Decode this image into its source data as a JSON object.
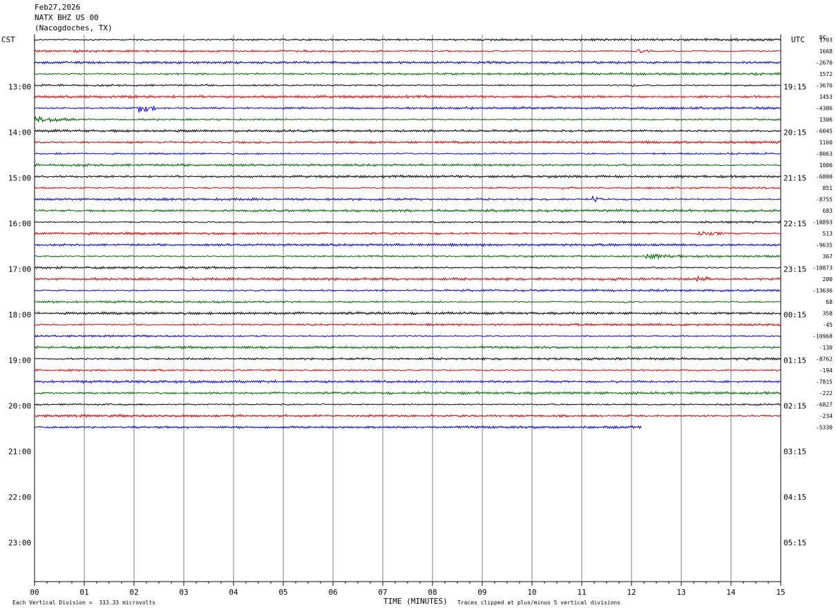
{
  "header": {
    "date": "Feb27,2026",
    "station": "NATX BHZ US 00",
    "location": "(Nacogdoches, TX)"
  },
  "left_tz": "CST",
  "right_tz": "UTC",
  "dc_label": "DC",
  "footer": {
    "scale": "Each Vertical Division =  333.33 microvolts",
    "xlabel": "TIME (MINUTES)",
    "clip": "Traces clipped at plus/minus 5 vertical divisions"
  },
  "colors": {
    "black": "#000000",
    "red": "#e00000",
    "blue": "#0000e0",
    "green": "#006400",
    "grid": "#7f7f7f"
  },
  "chart_data": {
    "type": "line",
    "title": "NATX BHZ US 00",
    "xlabel": "TIME (MINUTES)",
    "x_ticks": [
      "00",
      "01",
      "02",
      "03",
      "04",
      "05",
      "06",
      "07",
      "08",
      "09",
      "10",
      "11",
      "12",
      "13",
      "14",
      "15"
    ],
    "xlim": [
      0,
      15
    ],
    "left_hour_labels": [
      "13:00",
      "14:00",
      "15:00",
      "16:00",
      "17:00",
      "18:00",
      "19:00",
      "20:00",
      "21:00",
      "22:00",
      "23:00"
    ],
    "right_hour_labels": [
      "19:15",
      "20:15",
      "21:15",
      "22:15",
      "23:15",
      "00:15",
      "01:15",
      "02:15",
      "03:15",
      "04:15",
      "05:15"
    ],
    "rows_per_hour": 4,
    "row_colors": [
      "black",
      "red",
      "blue",
      "green"
    ],
    "trace_count": 35,
    "last_trace_minutes": 12.2,
    "dc_values": [
      "1703",
      "1668",
      "-2670",
      "1572",
      "-3676",
      "1453",
      "-4386",
      "1306",
      "-6045",
      "1160",
      "-8063",
      "1006",
      "-6800",
      "851",
      "-8755",
      "683",
      "-10893",
      "513",
      "-9635",
      "367",
      "-10873",
      "200",
      "-13636",
      "68",
      "358",
      "-45",
      "-10968",
      "-130",
      "-8762",
      "-194",
      "-7815",
      "-222",
      "-6827",
      "-234",
      "-5330"
    ]
  }
}
